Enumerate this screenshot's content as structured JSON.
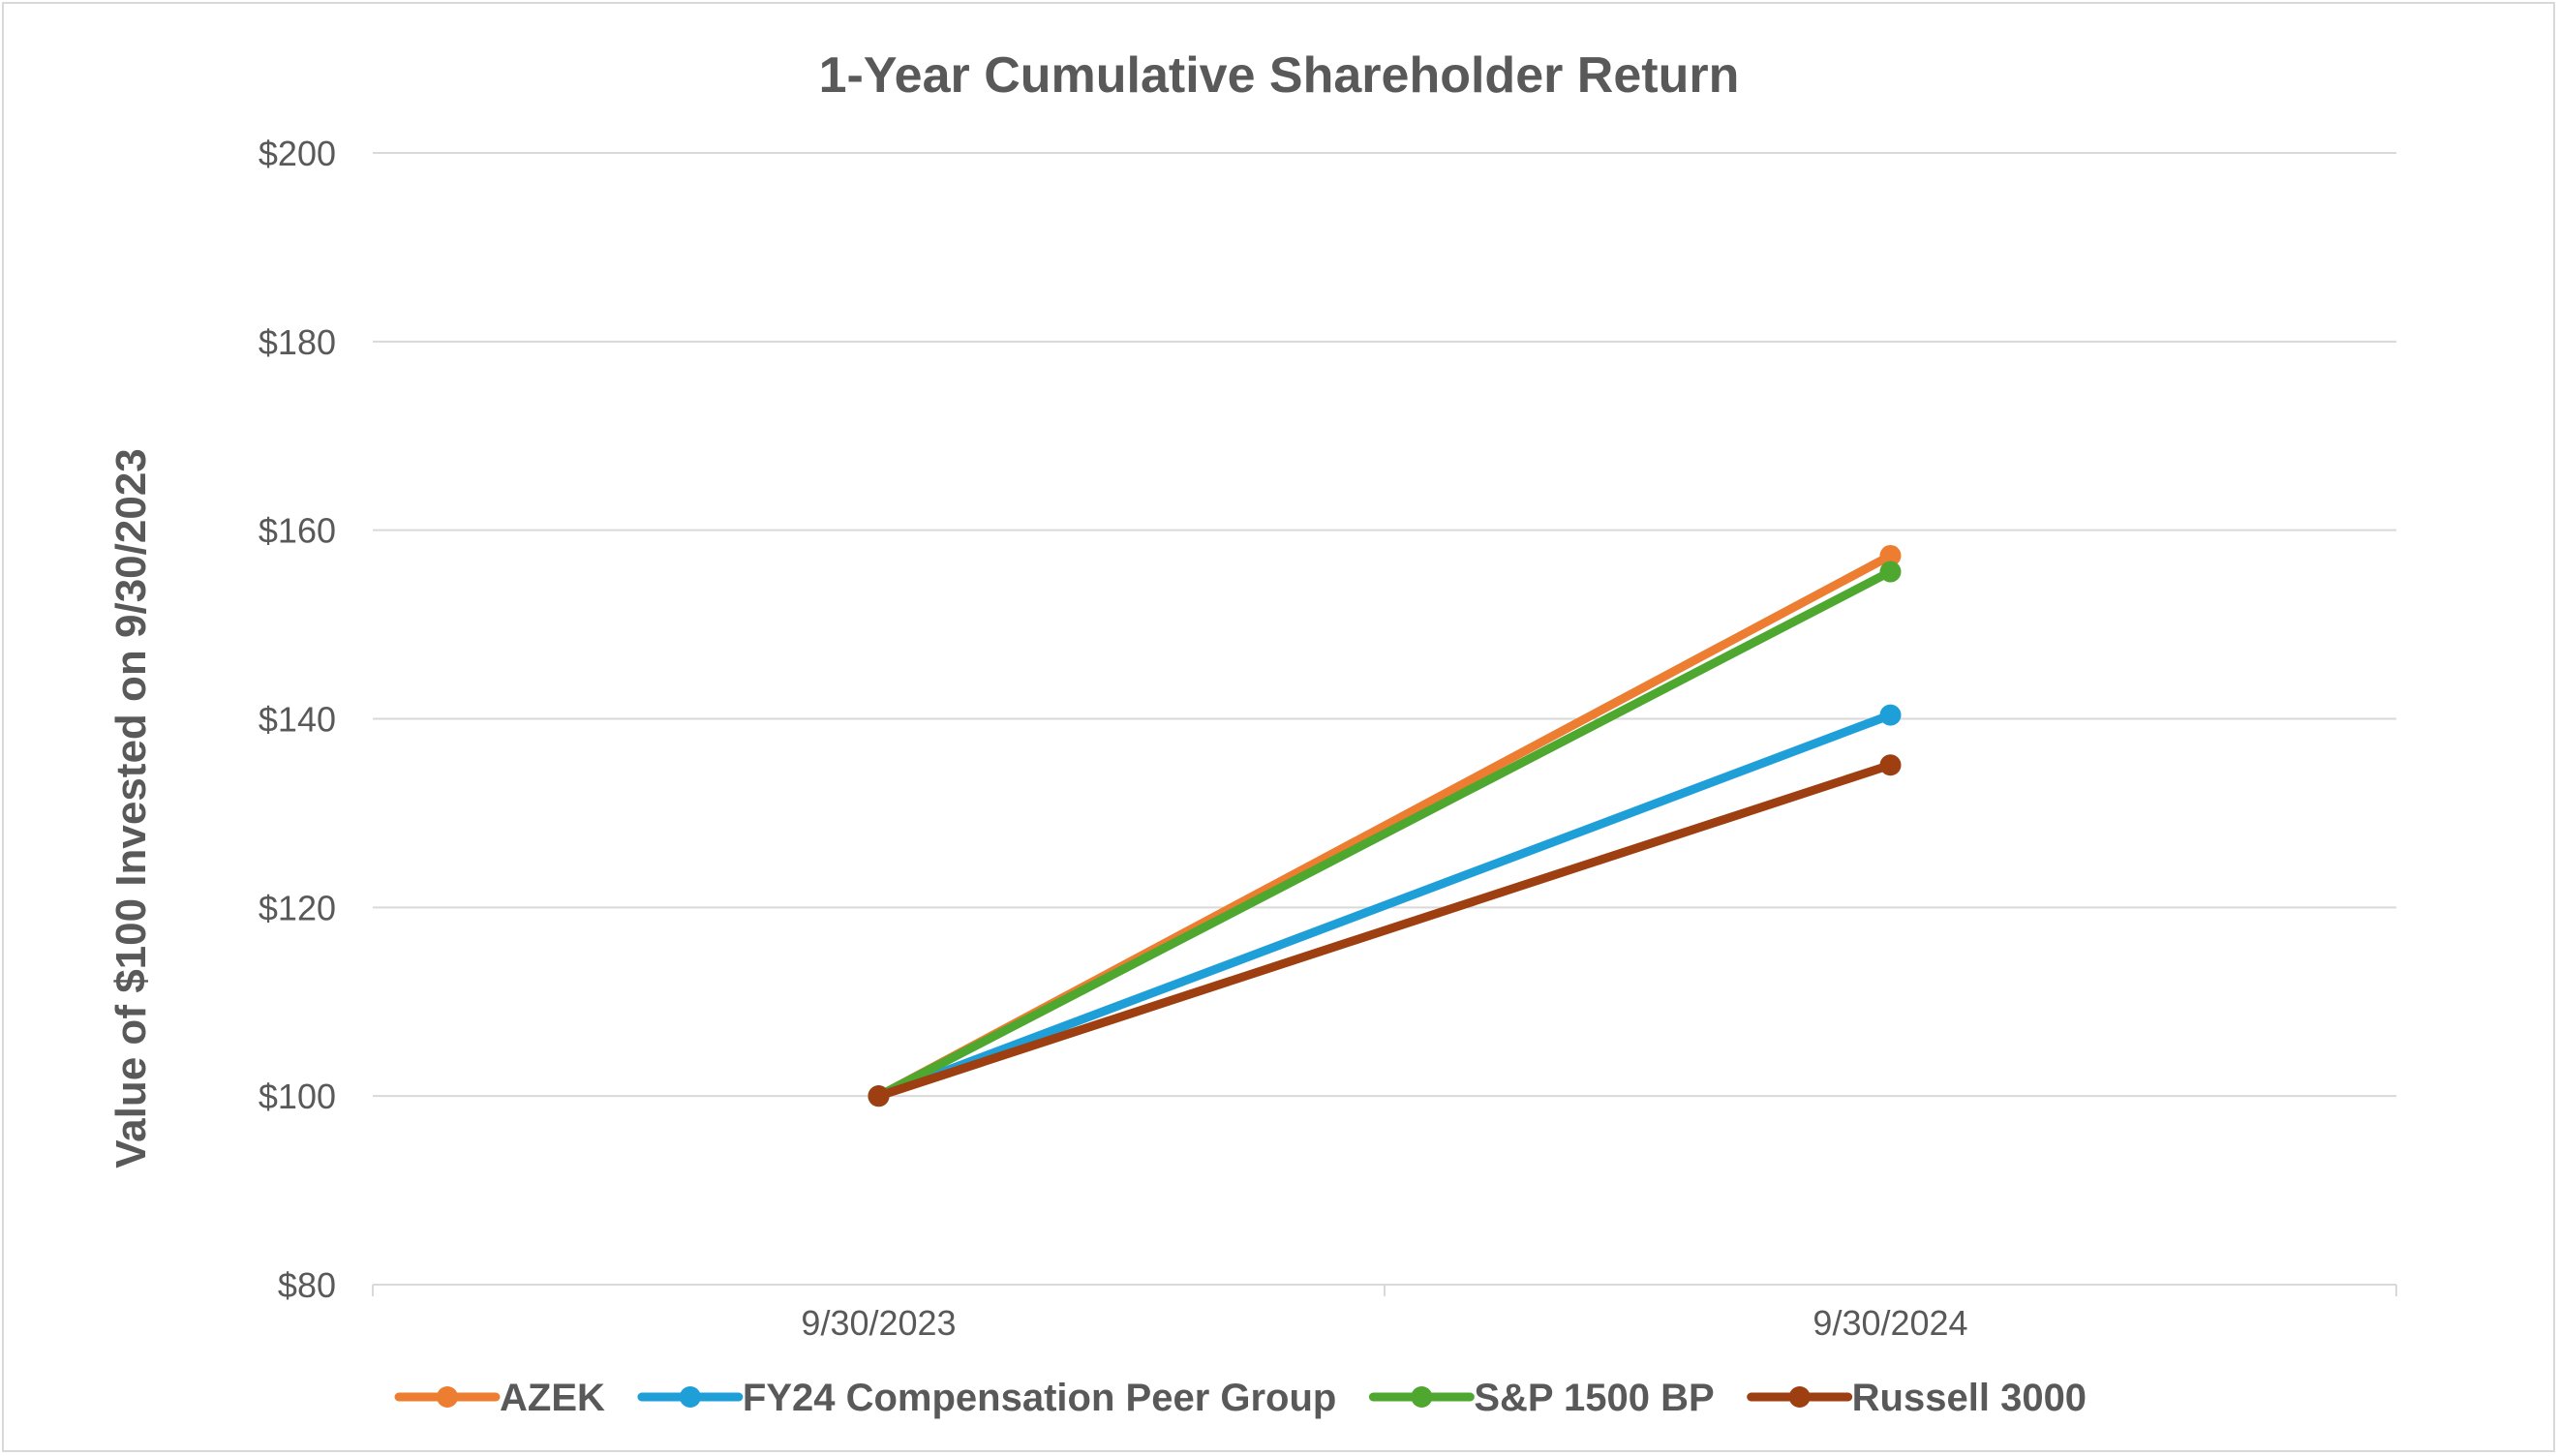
{
  "chart_data": {
    "type": "line",
    "title": "1-Year Cumulative Shareholder Return",
    "xlabel": "",
    "ylabel": "Value of $100 Invested on 9/30/2023",
    "categories": [
      "9/30/2023",
      "9/30/2024"
    ],
    "ylim": [
      80,
      200
    ],
    "yticks": [
      80,
      100,
      120,
      140,
      160,
      180,
      200
    ],
    "ytick_labels": [
      "$80",
      "$100",
      "$120",
      "$140",
      "$160",
      "$180",
      "$200"
    ],
    "grid": true,
    "legend_position": "bottom",
    "series": [
      {
        "name": "AZEK",
        "values": [
          100,
          157.3
        ],
        "color": "#ED7D31"
      },
      {
        "name": "FY24 Compensation Peer Group",
        "values": [
          100,
          140.4
        ],
        "color": "#1F9FD8"
      },
      {
        "name": "S&P 1500 BP",
        "values": [
          100,
          155.6
        ],
        "color": "#4EA72E"
      },
      {
        "name": "Russell 3000",
        "values": [
          100,
          135.1
        ],
        "color": "#9E3F12"
      }
    ]
  }
}
